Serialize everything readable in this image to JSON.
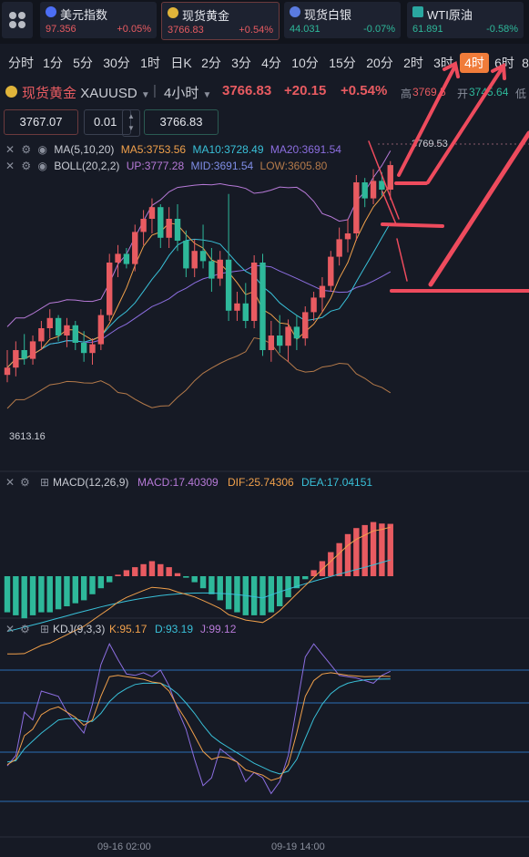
{
  "market": {
    "tiles": [
      {
        "name": "美元指数",
        "price": "97.356",
        "change": "+0.05%",
        "dir": "up",
        "icon_color": "#4c6ef5",
        "icon": "us-flag-icon"
      },
      {
        "name": "现货黄金",
        "price": "3766.83",
        "change": "+0.54%",
        "dir": "up",
        "icon_color": "#e0b43a",
        "icon": "gold-icon"
      },
      {
        "name": "现货白银",
        "price": "44.031",
        "change": "-0.07%",
        "dir": "down",
        "icon_color": "#5a7be0",
        "icon": "silver-icon"
      },
      {
        "name": "WTI原油",
        "price": "61.891",
        "change": "-0.58%",
        "dir": "down",
        "icon_color": "#2aa7a0",
        "icon": "oil-icon"
      }
    ]
  },
  "timeframes": [
    "分时",
    "1分",
    "5分",
    "30分",
    "1时",
    "日K",
    "2分",
    "3分",
    "4分",
    "10分",
    "15分",
    "20分",
    "2时",
    "3时",
    "4时",
    "6时",
    "8"
  ],
  "selected_timeframe": "4时",
  "symbol": {
    "name": "现货黄金",
    "code": "XAUUSD",
    "interval": "4小时",
    "price": "3766.83",
    "change": "+20.15",
    "change_pct": "+0.54%",
    "high_label": "高",
    "high": "3769.5",
    "open_label": "开",
    "open": "3745.64",
    "low_label": "低"
  },
  "order": {
    "sell_price": "3767.07",
    "qty": "0.01",
    "buy_price": "3766.83"
  },
  "indicators": {
    "ma": {
      "label": "MA(5,10,20)",
      "ma5": "MA5:3753.56",
      "ma10": "MA10:3728.49",
      "ma20": "MA20:3691.54"
    },
    "boll": {
      "label": "BOLL(20,2,2)",
      "up": "UP:3777.28",
      "mid": "MID:3691.54",
      "low": "LOW:3605.80"
    },
    "macd": {
      "label": "MACD(12,26,9)",
      "macd": "MACD:17.40309",
      "dif": "DIF:25.74306",
      "dea": "DEA:17.04151"
    },
    "kdj": {
      "label": "KDJ(9,3,3)",
      "k": "K:95.17",
      "d": "D:93.19",
      "j": "J:99.12"
    }
  },
  "colors": {
    "up": "#e85b61",
    "down": "#2eb89a",
    "ma5": "#f0a04b",
    "ma10": "#39c0d8",
    "ma20": "#8c6ee0",
    "boll": "#b77ad8",
    "boll_low": "#b47a4a",
    "annotation": "#ee4b5d"
  },
  "chart_data": {
    "type": "candlestick",
    "price_labels": {
      "high": "3769.53",
      "low": "3613.16"
    },
    "time_labels": [
      "09-16 02:00",
      "09-19 14:00"
    ],
    "candles": [
      {
        "o": 3623,
        "h": 3640,
        "l": 3618,
        "c": 3628
      },
      {
        "o": 3628,
        "h": 3646,
        "l": 3622,
        "c": 3640
      },
      {
        "o": 3640,
        "h": 3651,
        "l": 3630,
        "c": 3634
      },
      {
        "o": 3634,
        "h": 3650,
        "l": 3630,
        "c": 3646
      },
      {
        "o": 3646,
        "h": 3660,
        "l": 3640,
        "c": 3655
      },
      {
        "o": 3655,
        "h": 3668,
        "l": 3648,
        "c": 3662
      },
      {
        "o": 3662,
        "h": 3664,
        "l": 3646,
        "c": 3650
      },
      {
        "o": 3650,
        "h": 3662,
        "l": 3642,
        "c": 3657
      },
      {
        "o": 3657,
        "h": 3660,
        "l": 3640,
        "c": 3645
      },
      {
        "o": 3645,
        "h": 3653,
        "l": 3632,
        "c": 3638
      },
      {
        "o": 3638,
        "h": 3648,
        "l": 3630,
        "c": 3644
      },
      {
        "o": 3644,
        "h": 3668,
        "l": 3640,
        "c": 3664
      },
      {
        "o": 3664,
        "h": 3706,
        "l": 3660,
        "c": 3700
      },
      {
        "o": 3700,
        "h": 3712,
        "l": 3690,
        "c": 3706
      },
      {
        "o": 3706,
        "h": 3710,
        "l": 3696,
        "c": 3699
      },
      {
        "o": 3699,
        "h": 3726,
        "l": 3694,
        "c": 3721
      },
      {
        "o": 3721,
        "h": 3736,
        "l": 3712,
        "c": 3730
      },
      {
        "o": 3730,
        "h": 3744,
        "l": 3720,
        "c": 3738
      },
      {
        "o": 3738,
        "h": 3740,
        "l": 3710,
        "c": 3717
      },
      {
        "o": 3717,
        "h": 3738,
        "l": 3710,
        "c": 3730
      },
      {
        "o": 3730,
        "h": 3740,
        "l": 3708,
        "c": 3715
      },
      {
        "o": 3715,
        "h": 3722,
        "l": 3690,
        "c": 3696
      },
      {
        "o": 3696,
        "h": 3716,
        "l": 3690,
        "c": 3708
      },
      {
        "o": 3708,
        "h": 3726,
        "l": 3696,
        "c": 3701
      },
      {
        "o": 3701,
        "h": 3710,
        "l": 3680,
        "c": 3689
      },
      {
        "o": 3689,
        "h": 3708,
        "l": 3684,
        "c": 3702
      },
      {
        "o": 3702,
        "h": 3747,
        "l": 3660,
        "c": 3667
      },
      {
        "o": 3667,
        "h": 3680,
        "l": 3660,
        "c": 3672
      },
      {
        "o": 3672,
        "h": 3686,
        "l": 3655,
        "c": 3660
      },
      {
        "o": 3660,
        "h": 3705,
        "l": 3655,
        "c": 3700
      },
      {
        "o": 3700,
        "h": 3706,
        "l": 3636,
        "c": 3640
      },
      {
        "o": 3640,
        "h": 3660,
        "l": 3632,
        "c": 3650
      },
      {
        "o": 3650,
        "h": 3664,
        "l": 3638,
        "c": 3643
      },
      {
        "o": 3643,
        "h": 3661,
        "l": 3632,
        "c": 3656
      },
      {
        "o": 3656,
        "h": 3664,
        "l": 3640,
        "c": 3648
      },
      {
        "o": 3648,
        "h": 3670,
        "l": 3643,
        "c": 3666
      },
      {
        "o": 3666,
        "h": 3680,
        "l": 3660,
        "c": 3676
      },
      {
        "o": 3676,
        "h": 3690,
        "l": 3666,
        "c": 3684
      },
      {
        "o": 3684,
        "h": 3708,
        "l": 3680,
        "c": 3704
      },
      {
        "o": 3704,
        "h": 3724,
        "l": 3698,
        "c": 3716
      },
      {
        "o": 3716,
        "h": 3730,
        "l": 3707,
        "c": 3720
      },
      {
        "o": 3720,
        "h": 3760,
        "l": 3715,
        "c": 3755
      },
      {
        "o": 3755,
        "h": 3758,
        "l": 3738,
        "c": 3744
      },
      {
        "o": 3744,
        "h": 3764,
        "l": 3740,
        "c": 3756
      },
      {
        "o": 3756,
        "h": 3762,
        "l": 3746,
        "c": 3750
      },
      {
        "o": 3750,
        "h": 3769.53,
        "l": 3743,
        "c": 3766.83
      }
    ],
    "macd_hist": [
      -12,
      -13,
      -14,
      -13,
      -12,
      -12,
      -11,
      -10,
      -9,
      -8,
      -6,
      -4,
      -2,
      0.5,
      2,
      3,
      4,
      5,
      4,
      3,
      1,
      -0.5,
      -2,
      -4,
      -6,
      -8,
      -11,
      -12,
      -13,
      -13,
      -13,
      -12,
      -10,
      -7,
      -4,
      -1,
      2,
      5,
      8,
      11,
      14,
      16,
      17,
      18,
      17.5,
      17.4
    ],
    "kdj_j": [
      27,
      35,
      68,
      62,
      84,
      82,
      80,
      68,
      60,
      52,
      74,
      104,
      120,
      108,
      97,
      96,
      98,
      95,
      100,
      88,
      70,
      55,
      32,
      12,
      18,
      40,
      35,
      30,
      15,
      22,
      18,
      6,
      15,
      35,
      72,
      110,
      120,
      112,
      104,
      96,
      95,
      94,
      92,
      90,
      96,
      99.12
    ],
    "kdj_k": [
      28,
      32,
      50,
      55,
      66,
      70,
      72,
      68,
      64,
      58,
      62,
      80,
      95,
      96,
      95,
      94,
      93,
      91,
      90,
      84,
      72,
      62,
      50,
      38,
      32,
      34,
      33,
      30,
      24,
      22,
      20,
      16,
      18,
      28,
      52,
      80,
      92,
      97,
      98,
      97,
      96,
      95.5,
      95,
      95.2,
      95.4,
      95.17
    ],
    "kdj_d": [
      30,
      31,
      40,
      46,
      52,
      57,
      62,
      63,
      63,
      61,
      61,
      67,
      76,
      82,
      86,
      89,
      90,
      90,
      90,
      87,
      82,
      75,
      67,
      58,
      50,
      45,
      41,
      37,
      33,
      29,
      26,
      23,
      21,
      23,
      32,
      48,
      63,
      74,
      82,
      87,
      90,
      91.5,
      92.5,
      93,
      93.1,
      93.19
    ]
  }
}
